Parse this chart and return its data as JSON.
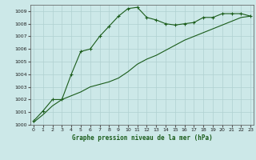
{
  "xlabel": "Graphe pression niveau de la mer (hPa)",
  "bg_color": "#cce8e8",
  "grid_color": "#b0d0d0",
  "line_color": "#1a5c1a",
  "axis_color": "#555555",
  "series1": {
    "x": [
      0,
      1,
      2,
      3,
      4,
      5,
      6,
      7,
      8,
      9,
      10,
      11,
      12,
      13,
      14,
      15,
      16,
      17,
      18,
      19,
      20,
      21,
      22,
      23
    ],
    "y": [
      1000.2,
      1000.8,
      1001.5,
      1002.0,
      1002.3,
      1002.6,
      1003.0,
      1003.2,
      1003.4,
      1003.7,
      1004.2,
      1004.8,
      1005.2,
      1005.5,
      1005.9,
      1006.3,
      1006.7,
      1007.0,
      1007.3,
      1007.6,
      1007.9,
      1008.2,
      1008.5,
      1008.6
    ]
  },
  "series2": {
    "x": [
      0,
      1,
      2,
      3,
      4,
      5,
      6,
      7,
      8,
      9,
      10,
      11,
      12,
      13,
      14,
      15,
      16,
      17,
      18,
      19,
      20,
      21,
      22,
      23
    ],
    "y": [
      1000.3,
      1001.1,
      1002.0,
      1002.0,
      1004.0,
      1005.8,
      1006.0,
      1007.0,
      1007.8,
      1008.6,
      1009.2,
      1009.3,
      1008.5,
      1008.3,
      1008.0,
      1007.9,
      1008.0,
      1008.1,
      1008.5,
      1008.5,
      1008.8,
      1008.8,
      1008.8,
      1008.6
    ]
  },
  "ylim": [
    1000,
    1009.5
  ],
  "xlim": [
    -0.3,
    23.3
  ],
  "yticks": [
    1000,
    1001,
    1002,
    1003,
    1004,
    1005,
    1006,
    1007,
    1008,
    1009
  ],
  "xticks": [
    0,
    1,
    2,
    3,
    4,
    5,
    6,
    7,
    8,
    9,
    10,
    11,
    12,
    13,
    14,
    15,
    16,
    17,
    18,
    19,
    20,
    21,
    22,
    23
  ]
}
